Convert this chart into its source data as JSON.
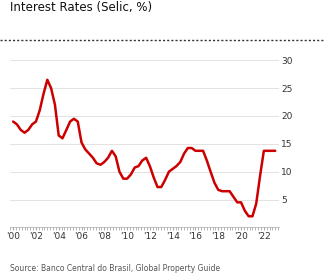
{
  "title": "Interest Rates (Selic, %)",
  "source": "Source: Banco Central do Brasil, Global Property Guide",
  "line_color": "#cc0000",
  "line_width": 1.8,
  "background_color": "#ffffff",
  "ylim": [
    0,
    30
  ],
  "yticks": [
    5,
    10,
    15,
    20,
    25,
    30
  ],
  "xlim": [
    1999.7,
    2023.3
  ],
  "xtick_positions": [
    2000,
    2002,
    2004,
    2006,
    2008,
    2010,
    2012,
    2014,
    2016,
    2018,
    2020,
    2022
  ],
  "xtick_labels": [
    "'00",
    "'02",
    "'04",
    "'06",
    "'08",
    "'10",
    "'12",
    "'14",
    "'16",
    "'18",
    "'20",
    "'22"
  ],
  "years": [
    2000,
    2000.33,
    2000.67,
    2001,
    2001.33,
    2001.67,
    2002,
    2002.33,
    2002.67,
    2003,
    2003.33,
    2003.67,
    2004,
    2004.33,
    2004.67,
    2005,
    2005.33,
    2005.67,
    2006,
    2006.33,
    2006.67,
    2007,
    2007.33,
    2007.67,
    2008,
    2008.33,
    2008.67,
    2009,
    2009.33,
    2009.67,
    2010,
    2010.33,
    2010.67,
    2011,
    2011.33,
    2011.67,
    2012,
    2012.33,
    2012.67,
    2013,
    2013.33,
    2013.67,
    2014,
    2014.33,
    2014.67,
    2015,
    2015.33,
    2015.67,
    2016,
    2016.33,
    2016.67,
    2017,
    2017.33,
    2017.67,
    2018,
    2018.33,
    2018.67,
    2019,
    2019.33,
    2019.67,
    2020,
    2020.33,
    2020.67,
    2021,
    2021.33,
    2021.67,
    2022,
    2022.33,
    2022.67,
    2023
  ],
  "values": [
    19.0,
    18.5,
    17.5,
    17.0,
    17.5,
    18.5,
    19.0,
    21.0,
    24.0,
    26.5,
    25.0,
    22.0,
    16.5,
    16.0,
    17.5,
    19.0,
    19.5,
    19.0,
    15.25,
    14.0,
    13.25,
    12.5,
    11.5,
    11.25,
    11.75,
    12.5,
    13.75,
    12.75,
    10.0,
    8.75,
    8.75,
    9.5,
    10.75,
    11.0,
    12.0,
    12.5,
    11.0,
    9.0,
    7.25,
    7.25,
    8.5,
    10.0,
    10.5,
    11.0,
    11.75,
    13.25,
    14.25,
    14.25,
    13.75,
    13.75,
    13.75,
    12.0,
    10.0,
    8.0,
    6.75,
    6.5,
    6.5,
    6.5,
    5.5,
    4.5,
    4.5,
    3.0,
    2.0,
    2.0,
    4.25,
    9.25,
    13.75,
    13.75,
    13.75,
    13.75
  ]
}
